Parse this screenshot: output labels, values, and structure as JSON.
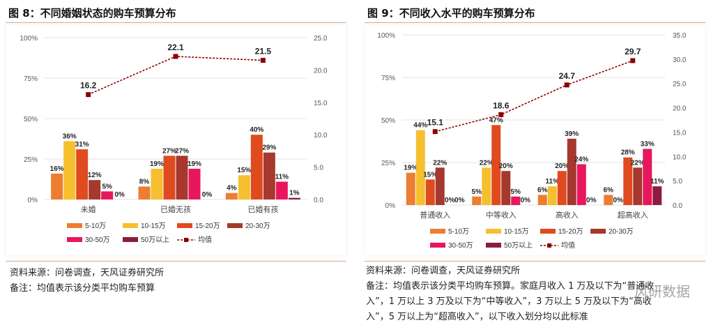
{
  "left": {
    "figure_title": "图 8：不同婚姻状态的购车预算分布",
    "source": "资料来源：问卷调查，天风证券研究所",
    "note": "备注：均值表示该分类平均购车预算"
  },
  "right": {
    "figure_title": "图 9：不同收入水平的购车预算分布",
    "source": "资料来源：问卷调查，天风证券研究所",
    "note_lines": [
      "备注：均值表示该分类平均购车预算。家庭月收入 1 万及以下为“普通收",
      "入”，1 万以上 3 万及以下为“中等收入”，3 万以上 5 万及以下为“高收",
      "入”，5 万以上为“超高收入”，以下收入划分均以此标准"
    ]
  },
  "watermark": "风研数据",
  "colors": {
    "s1": "#ED7D31",
    "s2": "#F5BF2F",
    "s3": "#E04A1F",
    "s4": "#A6382E",
    "s5": "#E8175D",
    "s6": "#8E1B3F",
    "mean": "#8B0000"
  },
  "chart_data": [
    {
      "type": "bar",
      "title": "图 8：不同婚姻状态的购车预算分布",
      "categories": [
        "未婚",
        "已婚无孩",
        "已婚有孩"
      ],
      "ylim": [
        0,
        100
      ],
      "yticks": [
        "0%",
        "25%",
        "50%",
        "75%",
        "100%"
      ],
      "ytick_values": [
        0,
        25,
        50,
        75,
        100
      ],
      "y2lim": [
        0,
        25
      ],
      "y2ticks": [
        "0.0",
        "5.0",
        "10.0",
        "15.0",
        "20.0",
        "25.0"
      ],
      "y2tick_values": [
        0,
        5,
        10,
        15,
        20,
        25
      ],
      "series": [
        {
          "name": "5-10万",
          "color_key": "s1",
          "values": [
            16,
            8,
            4
          ],
          "labels": [
            "16%",
            "8%",
            "4%"
          ]
        },
        {
          "name": "10-15万",
          "color_key": "s2",
          "values": [
            36,
            19,
            15
          ],
          "labels": [
            "36%",
            "19%",
            "15%"
          ]
        },
        {
          "name": "15-20万",
          "color_key": "s3",
          "values": [
            31,
            27,
            40
          ],
          "labels": [
            "31%",
            "27%",
            "40%"
          ]
        },
        {
          "name": "20-30万",
          "color_key": "s4",
          "values": [
            12,
            27,
            29
          ],
          "labels": [
            "12%",
            "27%",
            "29%"
          ]
        },
        {
          "name": "30-50万",
          "color_key": "s5",
          "values": [
            5,
            19,
            11
          ],
          "labels": [
            "5%",
            "19%",
            "11%"
          ]
        },
        {
          "name": "50万以上",
          "color_key": "s6",
          "values": [
            0,
            0,
            1
          ],
          "labels": [
            "0%",
            "0%",
            "1%"
          ]
        }
      ],
      "mean": {
        "name": "均值",
        "values": [
          16.2,
          22.1,
          21.5
        ],
        "labels": [
          "16.2",
          "22.1",
          "21.5"
        ]
      },
      "legend_position": "bottom"
    },
    {
      "type": "bar",
      "title": "图 9：不同收入水平的购车预算分布",
      "categories": [
        "普通收入",
        "中等收入",
        "高收入",
        "超高收入"
      ],
      "ylim": [
        0,
        100
      ],
      "yticks": [
        "0%",
        "25%",
        "50%",
        "75%",
        "100%"
      ],
      "ytick_values": [
        0,
        25,
        50,
        75,
        100
      ],
      "y2lim": [
        0,
        35
      ],
      "y2ticks": [
        "0.0",
        "5.0",
        "10.0",
        "15.0",
        "20.0",
        "25.0",
        "30.0",
        "35.0"
      ],
      "y2tick_values": [
        0,
        5,
        10,
        15,
        20,
        25,
        30,
        35
      ],
      "series": [
        {
          "name": "5-10万",
          "color_key": "s1",
          "values": [
            19,
            5,
            6,
            6
          ],
          "labels": [
            "19%",
            "5%",
            "6%",
            "6%"
          ]
        },
        {
          "name": "10-15万",
          "color_key": "s2",
          "values": [
            44,
            22,
            11,
            0
          ],
          "labels": [
            "44%",
            "22%",
            "11%",
            "0%"
          ]
        },
        {
          "name": "15-20万",
          "color_key": "s3",
          "values": [
            15,
            47,
            20,
            28
          ],
          "labels": [
            "15%",
            "47%",
            "20%",
            "28%"
          ]
        },
        {
          "name": "20-30万",
          "color_key": "s4",
          "values": [
            22,
            20,
            39,
            22
          ],
          "labels": [
            "22%",
            "20%",
            "39%",
            "22%"
          ]
        },
        {
          "name": "30-50万",
          "color_key": "s5",
          "values": [
            0,
            5,
            24,
            33
          ],
          "labels": [
            "0%",
            "5%",
            "24%",
            "33%"
          ]
        },
        {
          "name": "50万以上",
          "color_key": "s6",
          "values": [
            0,
            0,
            0,
            11
          ],
          "labels": [
            "0%",
            "0%",
            "0%",
            "11%"
          ]
        }
      ],
      "mean": {
        "name": "均值",
        "values": [
          15.1,
          18.6,
          24.7,
          29.7
        ],
        "labels": [
          "15.1",
          "18.6",
          "24.7",
          "29.7"
        ]
      },
      "legend_position": "bottom"
    }
  ]
}
